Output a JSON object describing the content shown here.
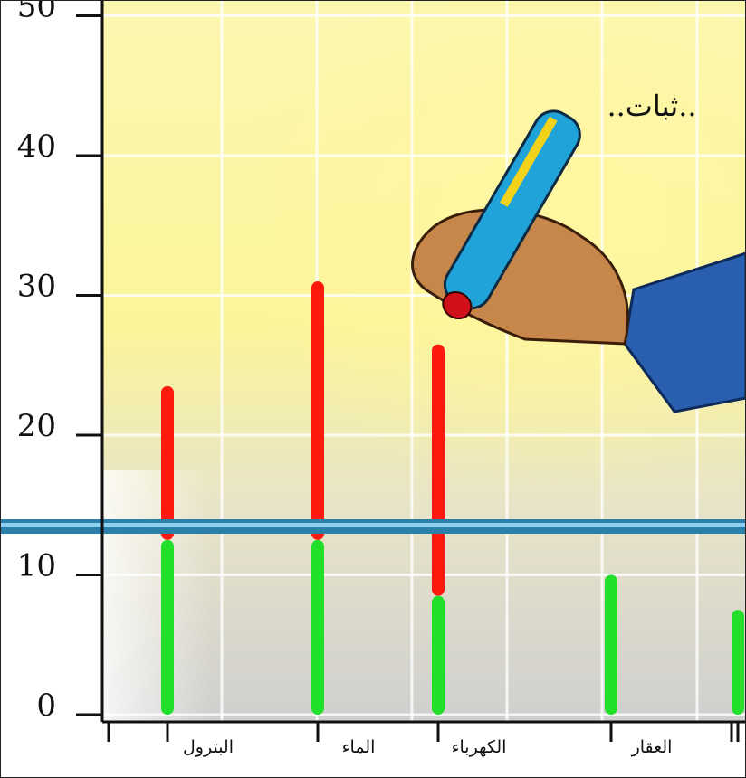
{
  "chart_data": {
    "type": "stacked-bar",
    "annotation": "..ثبات..",
    "categories": [
      "البترول",
      "الماء",
      "الكهرباء",
      "العقار",
      null
    ],
    "series": [
      {
        "color": "#22e02a",
        "values": [
          12.5,
          12.5,
          8.5,
          10,
          7.5
        ]
      },
      {
        "color": "#ff1a10",
        "values": [
          11,
          18.5,
          18,
          null,
          null
        ]
      }
    ],
    "ylim": [
      0,
      50
    ],
    "yticks": [
      0,
      10,
      20,
      30,
      40,
      50
    ],
    "grid": true
  }
}
